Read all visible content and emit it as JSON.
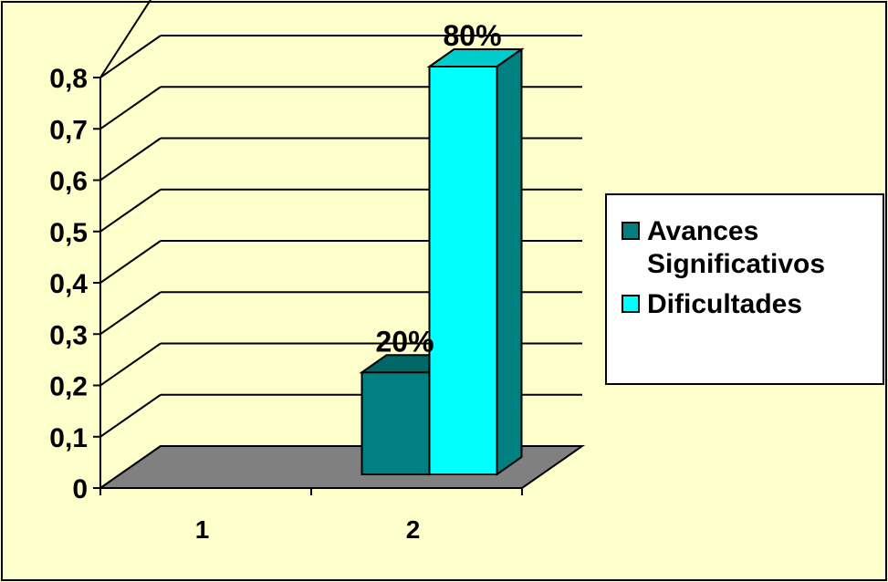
{
  "chart_data": {
    "type": "bar",
    "categories": [
      "1",
      "2"
    ],
    "series": [
      {
        "name": "Avances Significativos",
        "values": [
          null,
          0.2
        ],
        "data_labels": [
          "",
          "20%"
        ],
        "color": "#008080",
        "color_top": "#006666",
        "color_side": "#004c4c"
      },
      {
        "name": "Dificultades",
        "values": [
          null,
          0.8
        ],
        "data_labels": [
          "",
          "80%"
        ],
        "color": "#00ffff",
        "color_top": "#00cccc",
        "color_side": "#008080"
      }
    ],
    "ylim": [
      0,
      0.8
    ],
    "yticks": [
      "0",
      "0,1",
      "0,2",
      "0,3",
      "0,4",
      "0,5",
      "0,6",
      "0,7",
      "0,8"
    ],
    "grid": true,
    "three_d": true,
    "legend_position": "right",
    "floor_color": "#808080",
    "background_color": "#ffffcc"
  }
}
